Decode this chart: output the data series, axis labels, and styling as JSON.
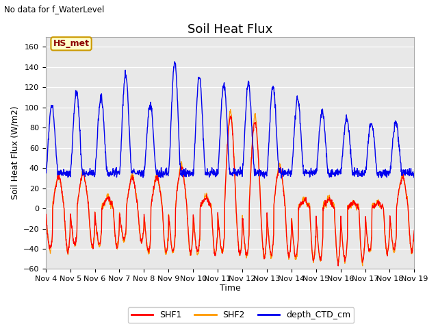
{
  "title": "Soil Heat Flux",
  "subtitle": "No data for f_WaterLevel",
  "ylabel": "Soil Heat Flux (W/m2)",
  "xlabel": "Time",
  "annotation": "HS_met",
  "ylim": [
    -60,
    170
  ],
  "yticks": [
    -60,
    -40,
    -20,
    0,
    20,
    40,
    60,
    80,
    100,
    120,
    140,
    160
  ],
  "xtick_labels": [
    "Nov 4",
    "Nov 5",
    "Nov 6",
    "Nov 7",
    "Nov 8",
    "Nov 9",
    "Nov 10",
    "Nov 11",
    "Nov 12",
    "Nov 13",
    "Nov 14",
    "Nov 15",
    "Nov 16",
    "Nov 17",
    "Nov 18",
    "Nov 19"
  ],
  "color_SHF1": "#ff0000",
  "color_SHF2": "#ff9900",
  "color_depth": "#0000ee",
  "plot_bg_color": "#e8e8e8",
  "fig_bg_color": "#ffffff",
  "legend_entries": [
    "SHF1",
    "SHF2",
    "depth_CTD_cm"
  ],
  "title_fontsize": 13,
  "axis_label_fontsize": 9,
  "tick_fontsize": 8,
  "n_days": 15,
  "n_points_per_day": 96
}
